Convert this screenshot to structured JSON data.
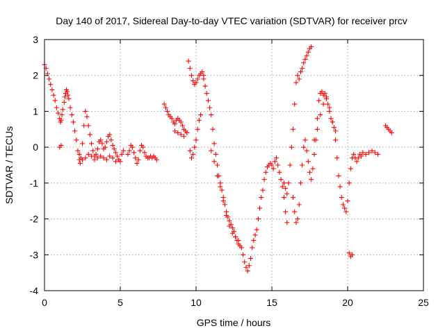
{
  "chart_data": {
    "type": "scatter",
    "title": "Day 140 of 2017, Sidereal Day-to-day VTEC variation (SDTVAR) for receiver prcv",
    "xlabel": "GPS time / hours",
    "ylabel": "SDTVAR / TECUs",
    "xlim": [
      0,
      25
    ],
    "ylim": [
      -4,
      3
    ],
    "xticks": [
      "0",
      "5",
      "10",
      "15",
      "20",
      "25"
    ],
    "yticks": [
      "-4",
      "-3",
      "-2",
      "-1",
      "0",
      "1",
      "2",
      "3"
    ],
    "grid": true,
    "marker": "plus",
    "color": "#ff0000",
    "series": [
      {
        "name": "prcv",
        "x": [
          0.0,
          0.1,
          0.2,
          0.3,
          0.4,
          0.5,
          0.6,
          0.7,
          0.8,
          0.9,
          1.0,
          1.05,
          1.1,
          1.15,
          1.2,
          1.3,
          1.35,
          1.4,
          1.45,
          1.5,
          1.55,
          1.6,
          1.7,
          1.8,
          1.9,
          2.0,
          2.1,
          2.2,
          2.3,
          2.35,
          2.4,
          2.5,
          2.6,
          2.7,
          2.8,
          2.9,
          3.0,
          3.1,
          3.2,
          3.3,
          3.4,
          3.5,
          3.6,
          3.7,
          3.8,
          3.9,
          4.0,
          4.1,
          4.2,
          4.3,
          4.4,
          4.5,
          4.6,
          4.7,
          4.8,
          4.9,
          5.0,
          5.1,
          5.2,
          1.0,
          1.1,
          2.3,
          2.5,
          2.7,
          2.9,
          3.1,
          3.3,
          3.5,
          3.7,
          3.9,
          4.1,
          4.3,
          4.5,
          4.7,
          4.9,
          5.5,
          5.6,
          5.7,
          5.8,
          5.9,
          6.0,
          6.1,
          6.2,
          6.3,
          6.4,
          6.5,
          6.6,
          6.7,
          6.8,
          6.9,
          7.0,
          7.1,
          7.2,
          7.3,
          7.4,
          7.9,
          8.0,
          8.1,
          8.2,
          8.3,
          8.4,
          8.5,
          8.6,
          8.7,
          8.8,
          8.9,
          9.0,
          9.1,
          9.2,
          9.3,
          9.4,
          8.6,
          8.8,
          9.0,
          9.2,
          9.4,
          9.5,
          9.6,
          9.7,
          9.8,
          9.9,
          10.0,
          10.1,
          10.2,
          10.3,
          10.4,
          10.5,
          9.6,
          9.7,
          9.8,
          9.9,
          10.0,
          10.1,
          10.2,
          10.3,
          10.5,
          10.6,
          10.7,
          10.8,
          10.9,
          11.0,
          11.1,
          11.2,
          11.3,
          11.4,
          11.5,
          11.6,
          11.7,
          11.8,
          11.9,
          12.0,
          12.1,
          12.2,
          12.3,
          12.4,
          12.5,
          12.6,
          12.7,
          12.8,
          12.9,
          13.0,
          11.0,
          11.2,
          11.4,
          11.6,
          11.8,
          12.0,
          12.2,
          12.4,
          12.6,
          12.8,
          13.1,
          13.2,
          13.3,
          13.4,
          13.5,
          13.6,
          13.7,
          13.8,
          13.9,
          14.0,
          14.1,
          14.2,
          14.3,
          14.4,
          14.5,
          14.6,
          14.7,
          14.8,
          14.9,
          15.0,
          15.1,
          15.2,
          15.3,
          15.4,
          15.5,
          15.6,
          15.7,
          15.8,
          15.9,
          16.0,
          15.8,
          15.9,
          16.0,
          16.1,
          16.2,
          16.3,
          16.4,
          16.5,
          16.6,
          16.7,
          16.8,
          16.9,
          17.0,
          17.1,
          17.2,
          17.3,
          17.4,
          17.5,
          17.6,
          16.4,
          16.5,
          16.6,
          16.7,
          16.8,
          16.9,
          17.0,
          17.1,
          17.2,
          17.3,
          17.4,
          17.5,
          17.6,
          17.7,
          17.8,
          17.9,
          18.0,
          18.1,
          18.2,
          18.3,
          18.4,
          18.5,
          18.6,
          18.7,
          18.8,
          18.9,
          19.0,
          19.1,
          19.2,
          17.8,
          18.0,
          18.2,
          18.4,
          18.6,
          18.8,
          19.0,
          19.2,
          19.3,
          19.4,
          19.5,
          19.6,
          19.7,
          19.8,
          19.9,
          20.0,
          20.1,
          20.2,
          20.3,
          20.4,
          20.5,
          20.6,
          20.7,
          20.8,
          20.9,
          21.0,
          21.2,
          21.4,
          21.6,
          21.8,
          22.0,
          20.1,
          20.2,
          20.3,
          22.5,
          22.6,
          22.7,
          22.8,
          22.9
        ],
        "y": [
          2.3,
          2.2,
          2.05,
          1.9,
          1.75,
          1.6,
          1.45,
          1.3,
          1.1,
          0.95,
          0.8,
          0.7,
          0.75,
          0.9,
          1.05,
          1.25,
          1.4,
          1.5,
          1.6,
          1.55,
          1.45,
          1.35,
          1.1,
          0.9,
          0.7,
          0.45,
          0.2,
          -0.1,
          -0.35,
          -0.45,
          -0.3,
          0.1,
          0.6,
          1.0,
          0.85,
          0.6,
          0.35,
          0.1,
          -0.1,
          -0.25,
          -0.2,
          -0.05,
          0.15,
          0.2,
          0.1,
          -0.05,
          0.0,
          0.15,
          0.3,
          0.35,
          0.2,
          0.05,
          -0.05,
          -0.15,
          -0.25,
          -0.35,
          -0.4,
          -0.2,
          -0.1,
          0.0,
          0.05,
          -0.2,
          -0.35,
          -0.3,
          -0.2,
          -0.25,
          -0.35,
          -0.3,
          -0.25,
          -0.3,
          -0.35,
          -0.25,
          -0.3,
          -0.4,
          -0.35,
          -0.2,
          -0.1,
          0.05,
          0.0,
          -0.15,
          -0.3,
          -0.45,
          -0.35,
          -0.1,
          0.05,
          0.0,
          -0.15,
          -0.25,
          -0.3,
          -0.3,
          -0.25,
          -0.3,
          -0.25,
          -0.3,
          -0.35,
          1.2,
          1.1,
          1.0,
          0.9,
          0.85,
          0.8,
          0.7,
          0.65,
          0.75,
          0.8,
          0.75,
          0.7,
          0.6,
          0.5,
          0.45,
          0.4,
          0.45,
          0.4,
          0.35,
          0.3,
          0.4,
          2.4,
          2.2,
          2.0,
          1.85,
          1.75,
          1.8,
          1.9,
          2.0,
          2.05,
          2.1,
          2.0,
          -0.1,
          -0.3,
          -0.2,
          0.0,
          0.2,
          0.5,
          0.75,
          0.9,
          1.9,
          1.7,
          1.5,
          1.3,
          1.1,
          0.9,
          0.5,
          0.1,
          -0.2,
          -0.5,
          -0.8,
          -1.0,
          -1.2,
          -1.4,
          -1.6,
          -1.8,
          -1.95,
          -2.05,
          -2.15,
          -2.25,
          -2.35,
          -2.5,
          -2.6,
          -2.7,
          -2.75,
          -2.8,
          -0.1,
          -0.4,
          -0.8,
          -1.1,
          -1.5,
          -1.9,
          -2.2,
          -2.4,
          -2.5,
          -2.6,
          -3.0,
          -3.2,
          -3.35,
          -3.45,
          -3.3,
          -3.1,
          -2.8,
          -2.6,
          -2.45,
          -2.3,
          -2.0,
          -1.7,
          -1.4,
          -1.2,
          -0.9,
          -0.7,
          -0.55,
          -0.5,
          -0.45,
          -0.5,
          -0.6,
          -0.4,
          -0.3,
          -0.5,
          -0.7,
          -0.9,
          -1.1,
          -1.4,
          -1.8,
          -2.1,
          -1.0,
          -1.15,
          -1.3,
          -1.0,
          -0.5,
          0.0,
          0.5,
          1.2,
          1.8,
          2.0,
          1.9,
          2.1,
          2.2,
          2.35,
          2.45,
          2.55,
          2.65,
          2.75,
          2.8,
          -1.4,
          -1.8,
          -2.1,
          -2.0,
          -1.6,
          -1.0,
          -0.5,
          0.0,
          0.2,
          -0.1,
          -0.4,
          -0.7,
          -0.9,
          -0.6,
          -0.2,
          0.2,
          0.8,
          1.3,
          1.5,
          1.55,
          1.45,
          1.5,
          1.4,
          1.2,
          1.0,
          0.8,
          0.7,
          0.55,
          0.45,
          0.2,
          0.5,
          0.9,
          1.2,
          1.35,
          1.1,
          0.7,
          0.2,
          -0.3,
          -0.8,
          -1.1,
          -1.4,
          -1.6,
          -1.7,
          -1.8,
          -1.5,
          -1.0,
          -0.6,
          -0.3,
          -0.2,
          -0.3,
          -0.4,
          -0.3,
          -0.2,
          -0.25,
          -0.15,
          -0.2,
          -0.15,
          -0.1,
          -0.15,
          -0.2,
          -2.95,
          -3.05,
          -3.0,
          0.6,
          0.55,
          0.5,
          0.45,
          0.4
        ]
      }
    ]
  }
}
